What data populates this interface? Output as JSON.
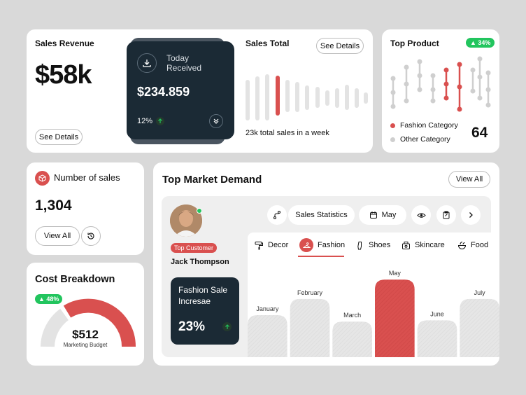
{
  "sales_revenue": {
    "title": "Sales Revenue",
    "value": "$58k",
    "button": "See Details"
  },
  "today_received": {
    "label_line1": "Today",
    "label_line2": "Received",
    "value": "$234.859",
    "percent": "12%"
  },
  "sales_total": {
    "title": "Sales Total",
    "button": "See Details",
    "caption": "23k total sales in a week"
  },
  "top_product": {
    "title": "Top Product",
    "badge": "▲ 34%",
    "legend": [
      "Fashion Category",
      "Other Category"
    ],
    "value": "64",
    "colors": {
      "fashion": "#d9504f",
      "other": "#cfcfcf"
    }
  },
  "number_of_sales": {
    "title": "Number of sales",
    "value": "1,304",
    "button": "View All"
  },
  "cost_breakdown": {
    "title": "Cost Breakdown",
    "badge": "▲ 48%",
    "value": "$512",
    "caption": "Marketing Budget"
  },
  "top_market": {
    "title": "Top Market Demand",
    "view_all": "View All",
    "customer_badge": "Top Customer",
    "customer_name": "Jack Thompson",
    "fashion_sale_line1": "Fashion Sale",
    "fashion_sale_line2": "Incresae",
    "fashion_sale_value": "23%",
    "toolbar": {
      "stats_label": "Sales Statistics",
      "month_label": "May"
    },
    "categories": [
      "Decor",
      "Fashion",
      "Shoes",
      "Skincare",
      "Food"
    ],
    "active_category": "Fashion"
  },
  "chart_data": {
    "type": "bar",
    "categories": [
      "January",
      "February",
      "March",
      "May",
      "June",
      "July"
    ],
    "values": [
      65,
      90,
      55,
      120,
      57,
      90
    ],
    "highlight": "May",
    "ylim": [
      0,
      130
    ]
  },
  "theme": {
    "accent": "#d9504f",
    "dark": "#1b2a35",
    "green": "#22c55e"
  }
}
